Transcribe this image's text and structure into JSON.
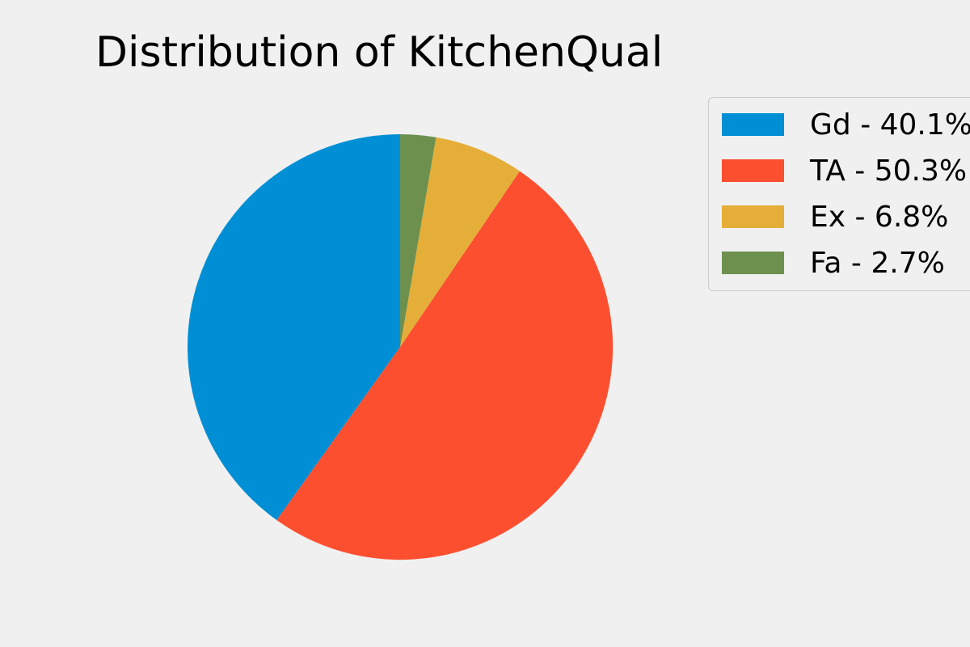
{
  "chart_data": {
    "type": "pie",
    "title": "Distribution of KitchenQual",
    "categories": [
      "Gd",
      "TA",
      "Ex",
      "Fa"
    ],
    "values": [
      40.1,
      50.3,
      6.8,
      2.7
    ],
    "legend_labels": [
      "Gd - 40.1%",
      "TA - 50.3%",
      "Ex - 6.8%",
      "Fa - 2.7%"
    ],
    "colors": [
      "#008fd5",
      "#fc4f30",
      "#e5ae38",
      "#6d904f"
    ],
    "start_angle_deg": 90,
    "direction": "counterclockwise",
    "legend_position": "top-right",
    "background": "#f0f0f0"
  }
}
